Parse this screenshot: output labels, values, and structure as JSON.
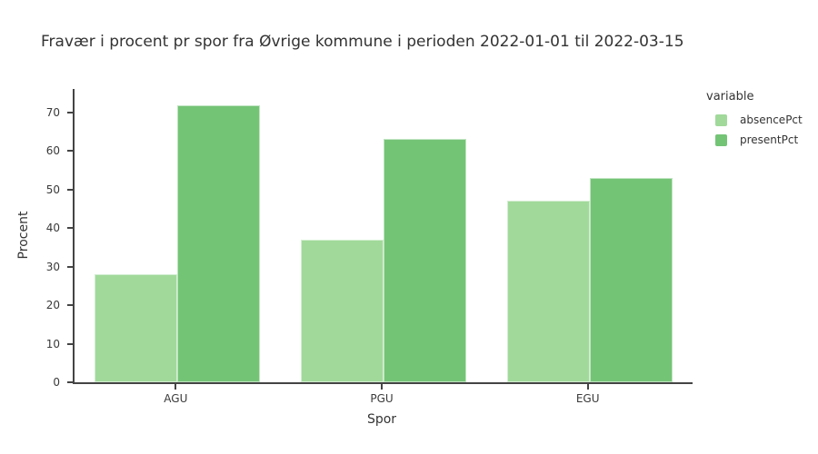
{
  "title": "Fravær i procent pr spor fra Øvrige kommune i perioden 2022-01-01 til 2022-03-15",
  "chart_data": {
    "type": "bar",
    "mode": "grouped",
    "title": "Fravær i procent pr spor fra Øvrige kommune i perioden 2022-01-01 til 2022-03-15",
    "categories": [
      "AGU",
      "PGU",
      "EGU"
    ],
    "series": [
      {
        "name": "absencePct",
        "color": "#a1d99b",
        "values": [
          28.1,
          36.9,
          47.2
        ]
      },
      {
        "name": "presentPct",
        "color": "#74c476",
        "values": [
          71.9,
          63.1,
          52.9
        ]
      }
    ],
    "xlabel": "Spor",
    "ylabel": "Procent",
    "ylim": [
      0,
      76.1
    ],
    "yticks": [
      0,
      10,
      20,
      30,
      40,
      50,
      60,
      70
    ],
    "grid": false,
    "background": "#ffffff",
    "axis_color": "#444444",
    "legend": {
      "title": "variable",
      "position": "right-top",
      "items": [
        "absencePct",
        "presentPct"
      ]
    }
  }
}
